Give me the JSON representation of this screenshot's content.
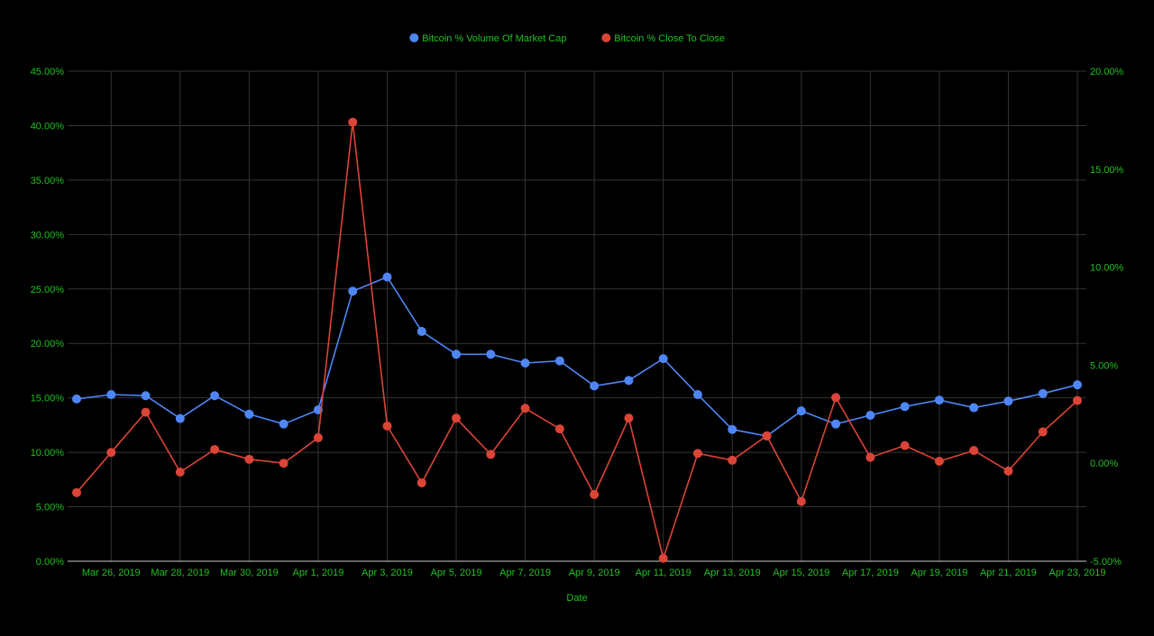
{
  "chart_data": {
    "type": "line",
    "xlabel": "Date",
    "x": [
      "Mar 25, 2019",
      "Mar 26, 2019",
      "Mar 27, 2019",
      "Mar 28, 2019",
      "Mar 29, 2019",
      "Mar 30, 2019",
      "Mar 31, 2019",
      "Apr 1, 2019",
      "Apr 2, 2019",
      "Apr 3, 2019",
      "Apr 4, 2019",
      "Apr 5, 2019",
      "Apr 6, 2019",
      "Apr 7, 2019",
      "Apr 8, 2019",
      "Apr 9, 2019",
      "Apr 10, 2019",
      "Apr 11, 2019",
      "Apr 12, 2019",
      "Apr 13, 2019",
      "Apr 14, 2019",
      "Apr 15, 2019",
      "Apr 16, 2019",
      "Apr 17, 2019",
      "Apr 18, 2019",
      "Apr 19, 2019",
      "Apr 20, 2019",
      "Apr 21, 2019",
      "Apr 22, 2019",
      "Apr 23, 2019"
    ],
    "x_tick_labels": [
      "Mar 26, 2019",
      "Mar 28, 2019",
      "Mar 30, 2019",
      "Apr 1, 2019",
      "Apr 3, 2019",
      "Apr 5, 2019",
      "Apr 7, 2019",
      "Apr 9, 2019",
      "Apr 11, 2019",
      "Apr 13, 2019",
      "Apr 15, 2019",
      "Apr 17, 2019",
      "Apr 19, 2019",
      "Apr 21, 2019",
      "Apr 23, 2019"
    ],
    "y_left": {
      "range": [
        0,
        45
      ],
      "ticks": [
        0,
        5,
        10,
        15,
        20,
        25,
        30,
        35,
        40,
        45
      ],
      "tick_labels": [
        "0.00%",
        "5.00%",
        "10.00%",
        "15.00%",
        "20.00%",
        "25.00%",
        "30.00%",
        "35.00%",
        "40.00%",
        "45.00%"
      ]
    },
    "y_right": {
      "range": [
        -5,
        20
      ],
      "ticks": [
        -5,
        0,
        5,
        10,
        15,
        20
      ],
      "tick_labels": [
        "-5.00%",
        "0.00%",
        "5.00%",
        "10.00%",
        "15.00%",
        "20.00%"
      ]
    },
    "series": [
      {
        "name": "Bitcoin % Volume Of Market Cap",
        "axis": "left",
        "color": "#4f86f7",
        "values": [
          14.9,
          15.3,
          15.2,
          13.1,
          15.2,
          13.5,
          12.6,
          13.9,
          24.8,
          26.1,
          21.1,
          19.0,
          19.0,
          18.2,
          18.4,
          16.1,
          16.6,
          18.6,
          15.3,
          12.1,
          11.5,
          13.8,
          12.6,
          13.4,
          14.2,
          14.8,
          14.1,
          14.7,
          15.4,
          16.2
        ]
      },
      {
        "name": "Bitcoin % Close To Close",
        "axis": "right",
        "color": "#db4437",
        "values": [
          -1.5,
          0.55,
          2.6,
          -0.45,
          0.7,
          0.2,
          0.0,
          1.3,
          17.4,
          1.9,
          -1.0,
          2.3,
          0.45,
          2.8,
          1.75,
          -1.6,
          2.3,
          -4.85,
          0.5,
          0.15,
          1.4,
          -1.95,
          3.35,
          0.3,
          0.9,
          0.1,
          0.65,
          -0.4,
          1.6,
          3.2
        ]
      }
    ],
    "grid": true,
    "legend_position": "top-center",
    "background": "#000000",
    "text_color": "#21c021",
    "grid_color": "#333333"
  }
}
